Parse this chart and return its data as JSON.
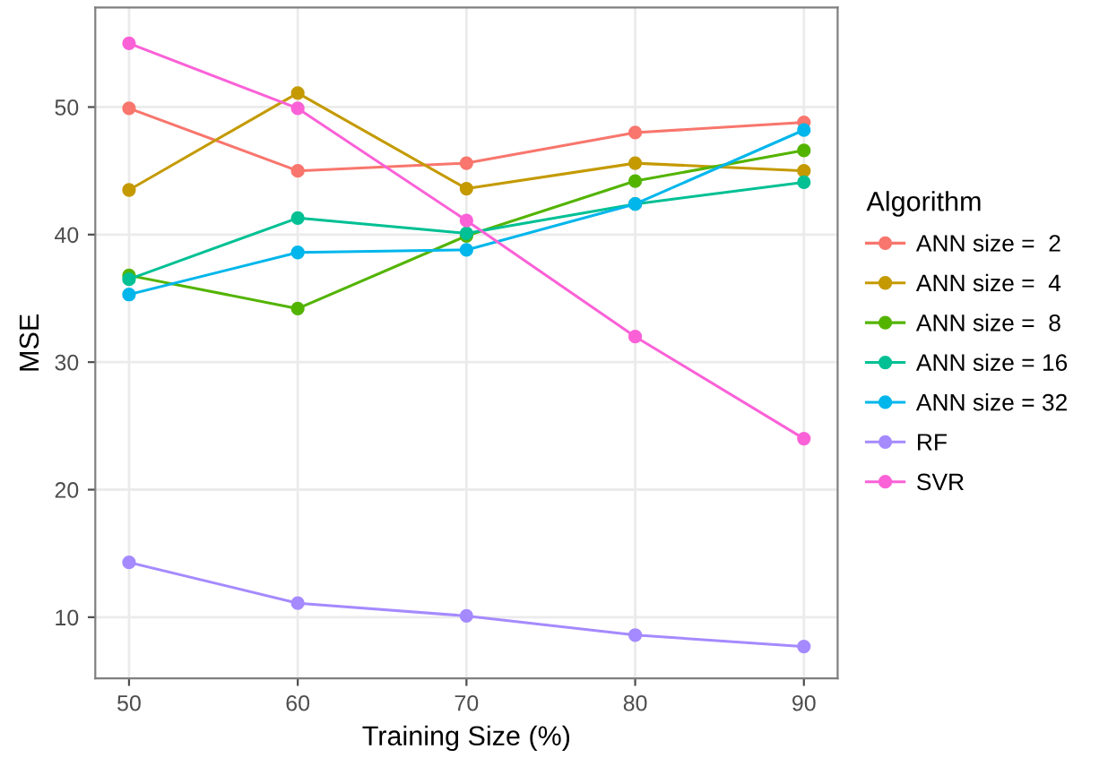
{
  "chart_data": {
    "type": "line",
    "xlabel": "Training Size (%)",
    "ylabel": "MSE",
    "legend_title": "Algorithm",
    "x": [
      50,
      60,
      70,
      80,
      90
    ],
    "series": [
      {
        "name": "ANN size =  2",
        "color": "#f8766d",
        "values": [
          49.9,
          45.0,
          45.6,
          48.0,
          48.8
        ]
      },
      {
        "name": "ANN size =  4",
        "color": "#c49a00",
        "values": [
          43.5,
          51.1,
          43.6,
          45.6,
          45.0
        ]
      },
      {
        "name": "ANN size =  8",
        "color": "#53b400",
        "values": [
          36.8,
          34.2,
          39.9,
          44.2,
          46.6
        ]
      },
      {
        "name": "ANN size = 16",
        "color": "#00c094",
        "values": [
          36.5,
          41.3,
          40.1,
          42.4,
          44.1
        ]
      },
      {
        "name": "ANN size = 32",
        "color": "#00b6eb",
        "values": [
          35.3,
          38.6,
          38.8,
          42.4,
          48.2
        ]
      },
      {
        "name": "RF",
        "color": "#a58aff",
        "values": [
          14.3,
          11.1,
          10.1,
          8.6,
          7.7
        ]
      },
      {
        "name": "SVR",
        "color": "#fb61d7",
        "values": [
          55.0,
          49.9,
          41.1,
          32.0,
          24.0
        ]
      }
    ],
    "xlim": [
      48,
      92
    ],
    "ylim": [
      5.2,
      57.8
    ],
    "xticks": [
      50,
      60,
      70,
      80,
      90
    ],
    "yticks": [
      10,
      20,
      30,
      40,
      50
    ],
    "grid": true,
    "legend": "right",
    "marker": "circle",
    "line_style": "solid"
  }
}
